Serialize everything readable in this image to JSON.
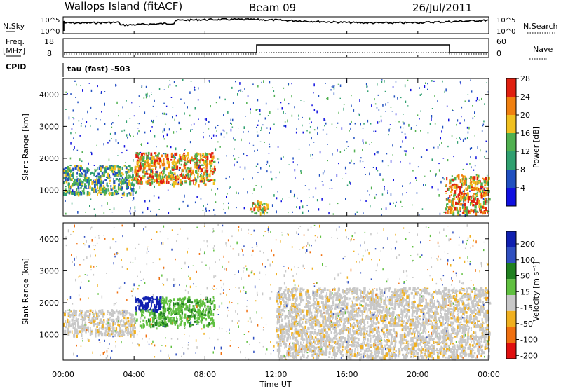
{
  "header": {
    "station": "Wallops Island (fitACF)",
    "beam": "Beam 09",
    "date": "26/Jul/2011"
  },
  "top_panels": {
    "nsky_label": "N.Sky",
    "nsky_ticks": [
      "10^5",
      "10^0"
    ],
    "nsearch_label": "N.Search",
    "nsearch_ticks": [
      "10^5",
      "10^0"
    ],
    "freq_label_1": "Freq.",
    "freq_label_2": "[MHz]",
    "freq_ticks": [
      "18",
      "8"
    ],
    "nave_label": "Nave",
    "nave_ticks": [
      "60",
      "0"
    ],
    "cpid_label": "CPID",
    "cpid_text": "tau (fast) -503"
  },
  "chart_data": [
    {
      "type": "heatmap",
      "title": "",
      "xlabel": "",
      "ylabel": "Slant Range [km]",
      "ylim": [
        200,
        4500
      ],
      "yticks": [
        "1000",
        "2000",
        "3000",
        "4000"
      ],
      "colorbar": {
        "label": "Power [dB]",
        "ticks": [
          "4",
          "8",
          "12",
          "16",
          "20",
          "24",
          "28"
        ],
        "colors": [
          "#1010e0",
          "#2050c0",
          "#30a070",
          "#50b050",
          "#f0c020",
          "#f08010",
          "#e02010"
        ]
      },
      "features": [
        {
          "time_start": "00:00",
          "time_end": "04:00",
          "range_km": [
            900,
            1800
          ],
          "power_db": [
            8,
            24
          ]
        },
        {
          "time_start": "04:00",
          "time_end": "08:30",
          "range_km": [
            1200,
            2200
          ],
          "power_db": [
            16,
            28
          ]
        },
        {
          "time_start": "10:30",
          "time_end": "11:30",
          "range_km": [
            300,
            700
          ],
          "power_db": [
            24,
            30
          ]
        },
        {
          "time_start": "21:30",
          "time_end": "24:00",
          "range_km": [
            300,
            1500
          ],
          "power_db": [
            12,
            30
          ]
        }
      ]
    },
    {
      "type": "heatmap",
      "title": "",
      "xlabel": "Time UT",
      "ylabel": "Slant Range [km]",
      "ylim": [
        200,
        4500
      ],
      "xticks": [
        "00:00",
        "04:00",
        "08:00",
        "12:00",
        "16:00",
        "20:00",
        "00:00"
      ],
      "yticks": [
        "1000",
        "2000",
        "3000",
        "4000"
      ],
      "colorbar": {
        "label": "Velocity [m s⁻¹]",
        "ticks": [
          "200",
          "100",
          "50",
          "15",
          "-15",
          "-50",
          "-100",
          "-200"
        ],
        "colors": [
          "#1020b0",
          "#3050c0",
          "#208020",
          "#60c040",
          "#c8c8c8",
          "#f0b020",
          "#f07010",
          "#e01010"
        ]
      },
      "features": [
        {
          "time_start": "04:00",
          "time_end": "08:30",
          "range_km": [
            1300,
            2200
          ],
          "velocity_ms": [
            30,
            120
          ]
        },
        {
          "time_start": "00:00",
          "time_end": "04:00",
          "range_km": [
            1000,
            1800
          ],
          "velocity_ms": [
            -15,
            15
          ]
        },
        {
          "time_start": "12:00",
          "time_end": "24:00",
          "range_km": [
            300,
            2500
          ],
          "velocity_ms": [
            -15,
            15
          ]
        }
      ]
    }
  ]
}
